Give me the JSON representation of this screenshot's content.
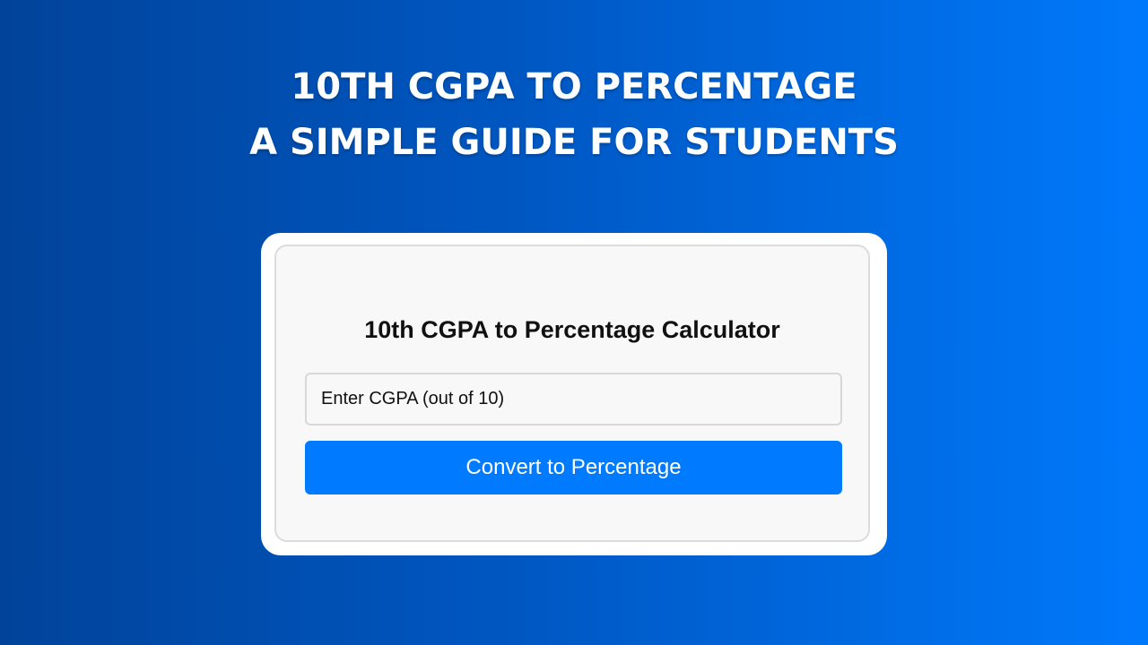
{
  "headline": {
    "line1": "10TH CGPA TO PERCENTAGE",
    "line2": "A SIMPLE GUIDE FOR STUDENTS"
  },
  "calculator": {
    "title": "10th CGPA to Percentage Calculator",
    "input_placeholder": "Enter CGPA (out of 10)",
    "button_label": "Convert to Percentage"
  },
  "colors": {
    "accent": "#007bff",
    "background_start": "#01439a",
    "background_end": "#0079fb"
  }
}
